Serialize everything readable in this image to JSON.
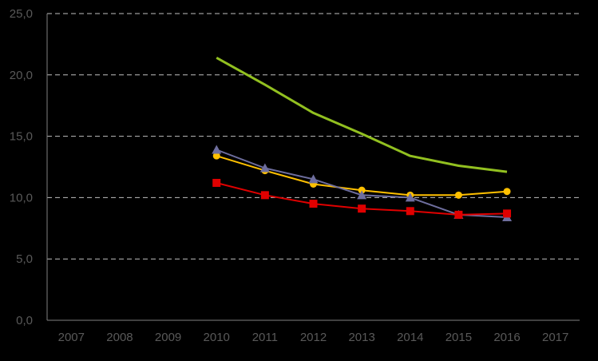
{
  "chart_data": {
    "type": "line",
    "title": "",
    "xlabel": "",
    "ylabel": "",
    "categories": [
      "2007",
      "2008",
      "2009",
      "2010",
      "2011",
      "2012",
      "2013",
      "2014",
      "2015",
      "2016",
      "2017"
    ],
    "ylim": [
      0,
      25
    ],
    "yticks": [
      "0,0",
      "5,0",
      "10,0",
      "15,0",
      "20,0",
      "25,0"
    ],
    "grid": "horizontal-dashed",
    "legend": "none",
    "series": [
      {
        "color": "#92C020",
        "marker": "none",
        "values": [
          null,
          null,
          null,
          21.4,
          19.2,
          16.9,
          15.2,
          13.4,
          12.6,
          12.1,
          null
        ]
      },
      {
        "color": "#FFC000",
        "marker": "circle",
        "values": [
          null,
          null,
          null,
          13.4,
          12.2,
          11.1,
          10.6,
          10.2,
          10.2,
          10.5,
          null
        ]
      },
      {
        "color": "#6E6E9E",
        "marker": "triangle",
        "values": [
          null,
          null,
          null,
          13.9,
          12.4,
          11.5,
          10.2,
          10.0,
          8.6,
          8.4,
          null
        ]
      },
      {
        "color": "#E00000",
        "marker": "square",
        "values": [
          null,
          null,
          null,
          11.2,
          10.2,
          9.5,
          9.1,
          8.9,
          8.6,
          8.7,
          null
        ]
      }
    ]
  }
}
